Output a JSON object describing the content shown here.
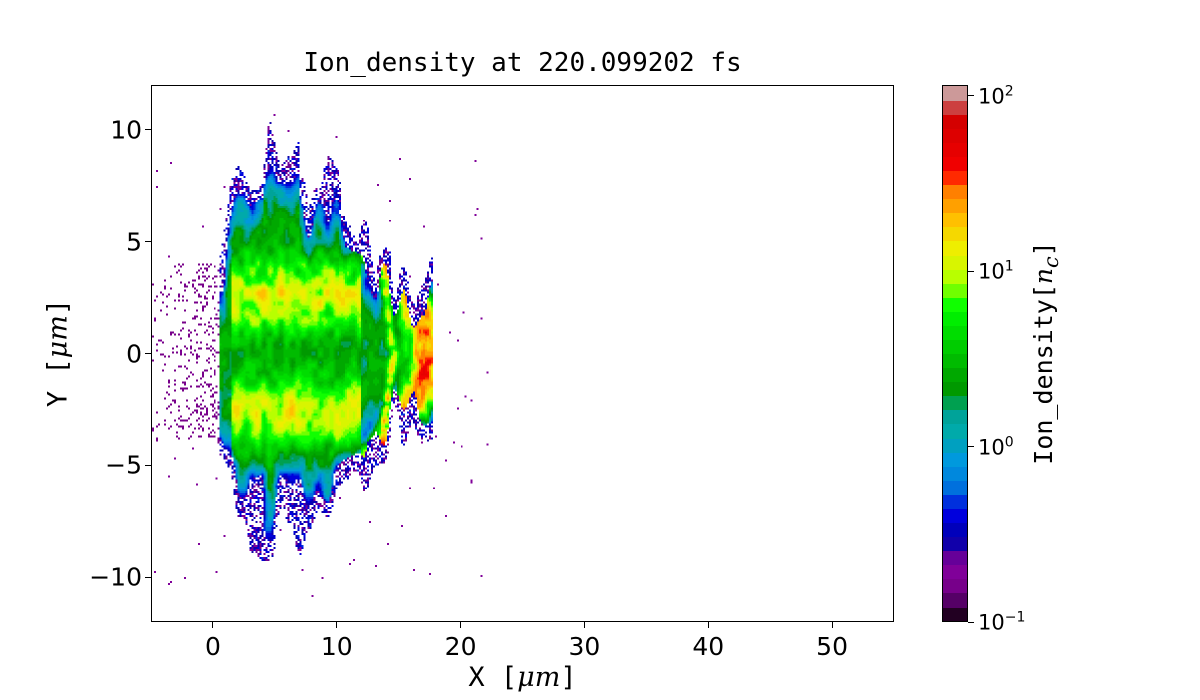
{
  "chart_data": {
    "type": "heatmap",
    "title": "Ion_density at 220.099202 fs",
    "xlabel": "X [μm]",
    "ylabel": "Y [μm]",
    "xlabel_prefix": "X ",
    "ylabel_prefix": "Y ",
    "unit": "μm",
    "xlim": [
      -5,
      55
    ],
    "ylim": [
      -12,
      12
    ],
    "xticks": [
      "0",
      "10",
      "20",
      "30",
      "40",
      "50"
    ],
    "xtick_values": [
      0,
      10,
      20,
      30,
      40,
      50
    ],
    "yticks": [
      "−10",
      "−5",
      "0",
      "5",
      "10"
    ],
    "ytick_values": [
      -10,
      -5,
      0,
      5,
      10
    ],
    "grid": false,
    "colorbar": {
      "label": "Ion_density[n_c]",
      "label_prefix": "Ion_density[",
      "label_unit": "n",
      "label_sub": "c",
      "label_suffix": "]",
      "scale": "log",
      "range": [
        0.1,
        115
      ],
      "ticks": [
        {
          "base": "10",
          "exp": "−1",
          "value": 0.1
        },
        {
          "base": "10",
          "exp": "0",
          "value": 1
        },
        {
          "base": "10",
          "exp": "1",
          "value": 10
        },
        {
          "base": "10",
          "exp": "2",
          "value": 100
        }
      ],
      "colormap": [
        "#220022",
        "#550066",
        "#77008a",
        "#800099",
        "#660099",
        "#1100aa",
        "#0000bb",
        "#0000dd",
        "#0030dd",
        "#0070dd",
        "#0088dd",
        "#0099dd",
        "#00a0c0",
        "#00aaaa",
        "#00a399",
        "#00a050",
        "#009900",
        "#00a800",
        "#00bb00",
        "#00cc00",
        "#00dd00",
        "#00ee00",
        "#10ff00",
        "#70ff00",
        "#b8ff00",
        "#d8f500",
        "#eeee00",
        "#f5d800",
        "#ffc000",
        "#ffa000",
        "#ff8000",
        "#ff2a00",
        "#f00000",
        "#e60000",
        "#dd0000",
        "#d40000",
        "#cc4040",
        "#cc9999"
      ]
    },
    "description_regions": {
      "plasma_extent_x": [
        0.5,
        17.8
      ],
      "plasma_extent_y": [
        -7.5,
        8.5
      ],
      "scatter_extent_x": [
        -5,
        23
      ]
    }
  }
}
